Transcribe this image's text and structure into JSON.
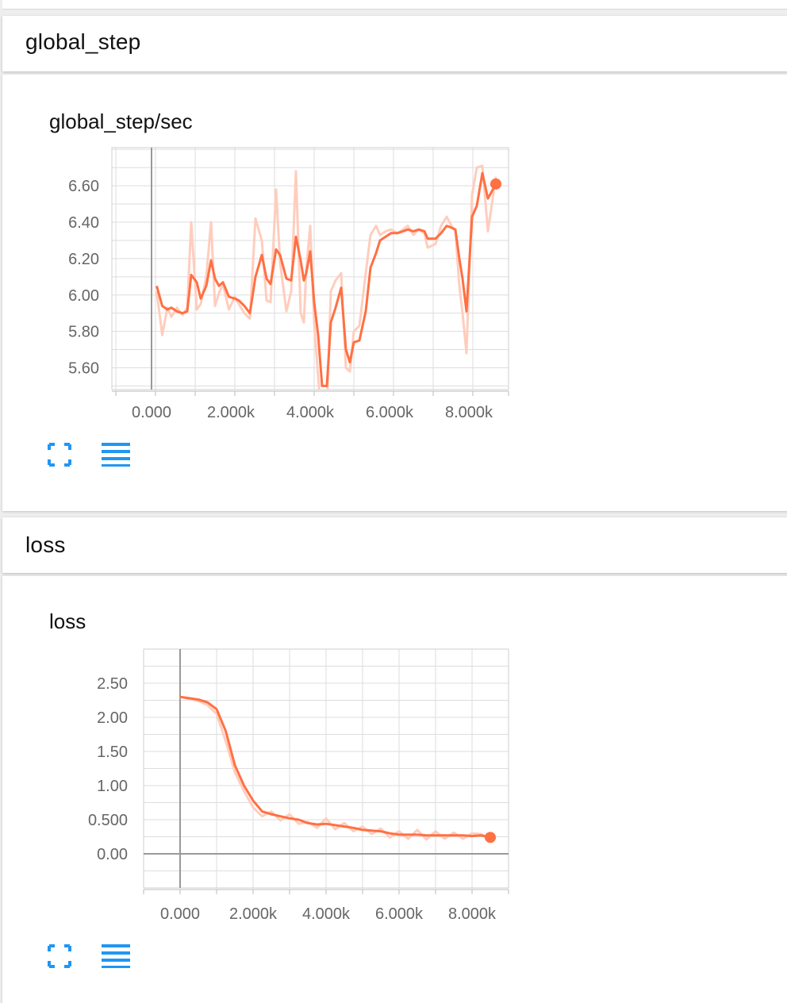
{
  "sections": [
    {
      "header": "global_step",
      "card_title": "global_step/sec"
    },
    {
      "header": "loss",
      "card_title": "loss"
    }
  ],
  "colors": {
    "line": "#ff7043",
    "line_raw": "#ffcdbd",
    "grid": "#dddddd",
    "axis": "#999999",
    "icon": "#2196f3"
  },
  "icons": {
    "expand": "fullscreen-expand-icon",
    "log_toggle": "log-scale-toggle-icon"
  },
  "chart_data": [
    {
      "type": "line",
      "title": "global_step/sec",
      "xlabel": "",
      "ylabel": "",
      "x_ticks": [
        "0.000",
        "2.000k",
        "4.000k",
        "6.000k",
        "8.000k"
      ],
      "y_ticks": [
        "5.60",
        "5.80",
        "6.00",
        "6.20",
        "6.40",
        "6.60"
      ],
      "xlim": [
        -1000,
        9000
      ],
      "ylim": [
        5.48,
        6.81
      ],
      "grid": true,
      "series": [
        {
          "smoothed": true,
          "x": [
            130,
            270,
            400,
            500,
            640,
            780,
            900,
            1000,
            1140,
            1240,
            1380,
            1500,
            1600,
            1700,
            1800,
            1950,
            2100,
            2200,
            2340,
            2480,
            2620,
            2780,
            2900,
            3000,
            3140,
            3240,
            3400,
            3520,
            3640,
            3760,
            3840,
            3900,
            4000,
            4100,
            4200,
            4300,
            4420,
            4520,
            4640,
            4780,
            4900,
            5000,
            5100,
            5240,
            5400,
            5520,
            5660,
            5760,
            5900,
            6040,
            6200,
            6340,
            6460,
            6600,
            6740,
            6880,
            6960,
            7160,
            7300,
            7440,
            7560,
            7660,
            7760,
            7840,
            7940,
            8080,
            8200,
            8340,
            8480,
            8680
          ],
          "y": [
            6.05,
            5.94,
            5.92,
            5.93,
            5.91,
            5.9,
            5.91,
            6.11,
            6.07,
            5.98,
            6.05,
            6.19,
            6.09,
            6.05,
            6.07,
            5.99,
            5.98,
            5.97,
            5.94,
            5.9,
            6.1,
            6.22,
            6.09,
            6.06,
            6.25,
            6.22,
            6.09,
            6.08,
            6.32,
            6.19,
            6.08,
            6.12,
            6.24,
            5.96,
            5.78,
            5.5,
            5.5,
            5.85,
            5.93,
            6.04,
            5.7,
            5.63,
            5.74,
            5.75,
            5.91,
            6.15,
            6.23,
            6.3,
            6.32,
            6.34,
            6.34,
            6.35,
            6.36,
            6.35,
            6.36,
            6.35,
            6.31,
            6.31,
            6.34,
            6.38,
            6.37,
            6.36,
            6.2,
            6.09,
            5.91,
            6.43,
            6.49,
            6.67,
            6.53,
            6.61
          ],
          "end_marker": true
        },
        {
          "smoothed": false,
          "x": [
            130,
            270,
            400,
            500,
            640,
            780,
            900,
            1000,
            1140,
            1240,
            1380,
            1500,
            1600,
            1700,
            1800,
            1950,
            2100,
            2200,
            2340,
            2480,
            2620,
            2780,
            2900,
            3000,
            3140,
            3240,
            3400,
            3520,
            3640,
            3760,
            3840,
            3900,
            4000,
            4100,
            4200,
            4300,
            4420,
            4520,
            4640,
            4780,
            4900,
            5000,
            5100,
            5240,
            5400,
            5520,
            5660,
            5760,
            5900,
            6040,
            6200,
            6340,
            6460,
            6600,
            6740,
            6880,
            6960,
            7160,
            7300,
            7440,
            7560,
            7660,
            7760,
            7840,
            7940,
            8080,
            8200,
            8340,
            8480,
            8680
          ],
          "y": [
            6.02,
            5.78,
            5.93,
            5.88,
            5.93,
            5.89,
            5.93,
            6.4,
            5.92,
            5.95,
            6.1,
            6.4,
            5.94,
            6.01,
            6.06,
            5.92,
            5.99,
            5.95,
            5.9,
            5.87,
            6.42,
            6.3,
            5.97,
            5.96,
            6.58,
            6.18,
            5.91,
            6.02,
            6.68,
            5.9,
            5.85,
            6.14,
            6.38,
            5.85,
            5.55,
            5.3,
            5.35,
            6.02,
            6.08,
            6.12,
            5.6,
            5.58,
            5.8,
            5.83,
            6.12,
            6.33,
            6.38,
            6.33,
            6.35,
            6.36,
            6.34,
            6.36,
            6.38,
            6.33,
            6.36,
            6.34,
            6.26,
            6.28,
            6.38,
            6.43,
            6.38,
            6.35,
            6.05,
            5.9,
            5.68,
            6.55,
            6.7,
            6.71,
            6.35,
            6.65
          ],
          "end_marker": false
        }
      ]
    },
    {
      "type": "line",
      "title": "loss",
      "xlabel": "",
      "ylabel": "",
      "x_ticks": [
        "0.000",
        "2.000k",
        "4.000k",
        "6.000k",
        "8.000k"
      ],
      "y_ticks": [
        "0.00",
        "0.500",
        "1.00",
        "1.50",
        "2.00",
        "2.50"
      ],
      "xlim": [
        -1000,
        9000
      ],
      "ylim": [
        -0.5,
        3.0
      ],
      "grid": true,
      "series": [
        {
          "smoothed": true,
          "x": [
            0,
            250,
            500,
            750,
            1000,
            1250,
            1500,
            1750,
            2000,
            2250,
            2500,
            2750,
            3000,
            3250,
            3500,
            3750,
            4000,
            4250,
            4500,
            4750,
            5000,
            5250,
            5500,
            5750,
            6000,
            6250,
            6500,
            6750,
            7000,
            7250,
            7500,
            7750,
            8000,
            8250,
            8500
          ],
          "y": [
            2.3,
            2.28,
            2.26,
            2.22,
            2.12,
            1.8,
            1.3,
            1.0,
            0.78,
            0.62,
            0.58,
            0.55,
            0.52,
            0.5,
            0.45,
            0.43,
            0.44,
            0.42,
            0.4,
            0.38,
            0.35,
            0.34,
            0.33,
            0.3,
            0.28,
            0.28,
            0.28,
            0.27,
            0.27,
            0.27,
            0.27,
            0.27,
            0.26,
            0.27,
            0.24
          ],
          "end_marker": true
        },
        {
          "smoothed": false,
          "x": [
            0,
            250,
            500,
            750,
            1000,
            1250,
            1500,
            1750,
            2000,
            2250,
            2500,
            2750,
            3000,
            3250,
            3500,
            3750,
            4000,
            4250,
            4500,
            4750,
            5000,
            5250,
            5500,
            5750,
            6000,
            6250,
            6500,
            6750,
            7000,
            7250,
            7500,
            7750,
            8000,
            8250,
            8500
          ],
          "y": [
            2.3,
            2.27,
            2.24,
            2.18,
            2.05,
            1.65,
            1.2,
            0.92,
            0.68,
            0.55,
            0.62,
            0.49,
            0.58,
            0.44,
            0.47,
            0.38,
            0.52,
            0.36,
            0.45,
            0.33,
            0.4,
            0.29,
            0.37,
            0.24,
            0.33,
            0.22,
            0.35,
            0.21,
            0.33,
            0.22,
            0.31,
            0.22,
            0.3,
            0.29,
            0.22
          ],
          "end_marker": false
        }
      ]
    }
  ]
}
